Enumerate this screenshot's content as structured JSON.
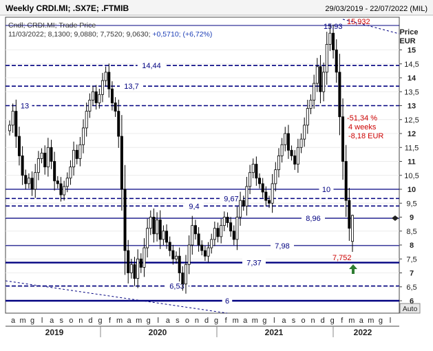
{
  "header": {
    "title": "Weekly CRDI.MI; .SX7E; .FTMIB",
    "date_range": "29/03/2019 - 22/07/2022 (MIL)"
  },
  "legend": {
    "line1": "Cndl; CRDI.MI; Trade Price",
    "line2_prefix": "11/03/2022; 8,1300; 9,0880; 7,7520; 9,0630; ",
    "line2_change": "+0,5710; (+6,72%)"
  },
  "axis": {
    "price_label": "Price",
    "currency_label": "EUR",
    "auto_button": "Auto"
  },
  "colors": {
    "candle": "#000000",
    "level_line": "#000080",
    "annotation_red": "#cc0000",
    "arrow_green": "#2e7d32"
  },
  "chart_data": {
    "type": "candlestick",
    "title": "Weekly CRDI.MI; .SX7E; .FTMIB",
    "series_name": "CRDI.MI",
    "price_field": "Trade Price",
    "date_range": [
      "29/03/2019",
      "22/07/2022"
    ],
    "ylabel": "Price EUR",
    "ylim": [
      5.8,
      16.4
    ],
    "y_ticks": [
      "6",
      "6,5",
      "7",
      "7,5",
      "8",
      "8,5",
      "9",
      "9,5",
      "10",
      "10,5",
      "11",
      "11,5",
      "12",
      "12,5",
      "13",
      "13,5",
      "14",
      "14,5",
      "15"
    ],
    "y_tick_values": [
      6,
      6.5,
      7,
      7.5,
      8,
      8.5,
      9,
      9.5,
      10,
      10.5,
      11,
      11.5,
      12,
      12.5,
      13,
      13.5,
      14,
      14.5,
      15
    ],
    "month_labels": [
      "a",
      "m",
      "g",
      "l",
      "a",
      "s",
      "o",
      "n",
      "d",
      "g",
      "f",
      "m",
      "a",
      "m",
      "g",
      "l",
      "a",
      "s",
      "o",
      "n",
      "d",
      "g",
      "f",
      "m",
      "a",
      "m",
      "g",
      "l",
      "a",
      "s",
      "o",
      "n",
      "d",
      "g",
      "f",
      "m",
      "a",
      "m",
      "g",
      "l"
    ],
    "year_labels": [
      "2019",
      "2020",
      "2021",
      "2022"
    ],
    "last_candle": {
      "date": "11/03/2022",
      "open": 8.13,
      "high": 9.088,
      "low": 7.752,
      "close": 9.063,
      "change": 0.571,
      "change_pct": 6.72
    },
    "closes": [
      12.3,
      12.8,
      11.9,
      11.2,
      10.5,
      10.2,
      10.4,
      10.0,
      10.6,
      11.1,
      11.3,
      10.8,
      11.5,
      11.0,
      10.3,
      10.2,
      9.8,
      10.1,
      10.4,
      10.8,
      11.4,
      11.1,
      11.6,
      12.2,
      12.8,
      13.2,
      13.5,
      13.1,
      13.4,
      13.9,
      14.2,
      13.6,
      13.1,
      12.8,
      11.9,
      10.0,
      7.8,
      7.0,
      7.3,
      6.8,
      7.5,
      7.2,
      7.9,
      8.6,
      9.0,
      8.4,
      8.9,
      8.2,
      8.5,
      8.1,
      7.8,
      7.5,
      7.6,
      7.0,
      6.6,
      7.3,
      8.0,
      8.7,
      8.4,
      8.0,
      7.8,
      7.6,
      7.9,
      8.2,
      8.6,
      8.3,
      8.7,
      9.0,
      8.8,
      8.5,
      8.2,
      9.0,
      9.6,
      9.4,
      10.1,
      10.6,
      10.9,
      10.4,
      10.2,
      9.9,
      9.6,
      9.5,
      10.2,
      10.7,
      11.2,
      11.6,
      12.0,
      11.4,
      11.2,
      10.9,
      11.5,
      11.8,
      12.3,
      12.9,
      13.2,
      13.8,
      14.4,
      13.5,
      14.2,
      15.2,
      15.6,
      15.0,
      14.2,
      12.6,
      11.0,
      9.6,
      8.6,
      9.063
    ],
    "levels": [
      {
        "value": 14.44,
        "label": "14,44",
        "style": "dashed"
      },
      {
        "value": 13.7,
        "label": "13,7",
        "style": "dashed"
      },
      {
        "value": 13,
        "label": "13",
        "style": "dashed"
      },
      {
        "value": 10,
        "label": "10",
        "style": "solid"
      },
      {
        "value": 9.67,
        "label": "9,67",
        "style": "dashed"
      },
      {
        "value": 9.4,
        "label": "9,4",
        "style": "dashed"
      },
      {
        "value": 8.96,
        "label": "8,96",
        "style": "solid"
      },
      {
        "value": 7.98,
        "label": "7,98",
        "style": "solid"
      },
      {
        "value": 7.37,
        "label": "7,37",
        "style": "thick"
      },
      {
        "value": 6.53,
        "label": "6,53",
        "style": "dashed"
      },
      {
        "value": 6,
        "label": "6",
        "style": "thick"
      }
    ],
    "annotations": {
      "high_label_blue": "15,93",
      "high_label_red": "15,932",
      "low_label_red": "7,752",
      "drop_pct": "-51,34 %",
      "drop_period": "4 weeks",
      "drop_eur": "-8,18 EUR"
    }
  }
}
